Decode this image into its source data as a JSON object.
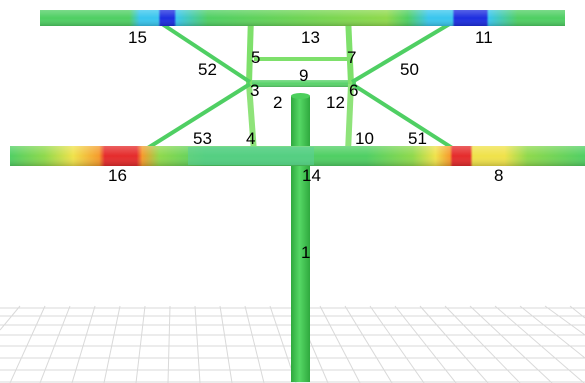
{
  "colors": {
    "background": "#ffffff",
    "grid": "#d9d9d9",
    "stress_scale": [
      "#1d2ee0",
      "#39c6ee",
      "#4fcf63",
      "#8fd94b",
      "#f0e24a",
      "#f59a2a",
      "#e52b2b"
    ],
    "label": "#000000"
  },
  "members": [
    {
      "id": "m1",
      "label": "1"
    },
    {
      "id": "m2",
      "label": "2"
    },
    {
      "id": "m3",
      "label": "3"
    },
    {
      "id": "m4",
      "label": "4"
    },
    {
      "id": "m5",
      "label": "5"
    },
    {
      "id": "m6",
      "label": "6"
    },
    {
      "id": "m7",
      "label": "7"
    },
    {
      "id": "m8",
      "label": "8"
    },
    {
      "id": "m9",
      "label": "9"
    },
    {
      "id": "m10",
      "label": "10"
    },
    {
      "id": "m11",
      "label": "11"
    },
    {
      "id": "m12",
      "label": "12"
    },
    {
      "id": "m13",
      "label": "13"
    },
    {
      "id": "m14",
      "label": "14"
    },
    {
      "id": "m15",
      "label": "15"
    },
    {
      "id": "m16",
      "label": "16"
    },
    {
      "id": "m50",
      "label": "50"
    },
    {
      "id": "m51",
      "label": "51"
    },
    {
      "id": "m52",
      "label": "52"
    },
    {
      "id": "m53",
      "label": "53"
    }
  ]
}
